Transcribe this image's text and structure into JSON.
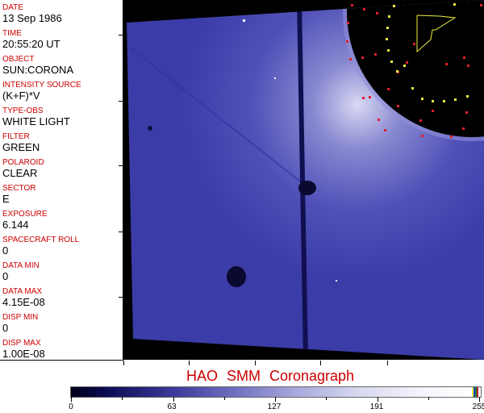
{
  "fields": [
    {
      "label": "DATE",
      "value": "13 Sep 1986"
    },
    {
      "label": "TIME",
      "value": "20:55:20 UT"
    },
    {
      "label": "OBJECT",
      "value": "SUN:CORONA"
    },
    {
      "label": "INTENSITY SOURCE",
      "value": "(K+F)*V"
    },
    {
      "label": "TYPE-OBS",
      "value": "WHITE LIGHT"
    },
    {
      "label": "FILTER",
      "value": "GREEN"
    },
    {
      "label": "POLAROID",
      "value": "CLEAR"
    },
    {
      "label": "SECTOR",
      "value": "E"
    },
    {
      "label": "EXPOSURE",
      "value": "6.144"
    },
    {
      "label": "SPACECRAFT ROLL",
      "value": "0"
    },
    {
      "label": "DATA MIN",
      "value": "0"
    },
    {
      "label": "DATA MAX",
      "value": "4.15E-08"
    },
    {
      "label": "DISP MIN",
      "value": "0"
    },
    {
      "label": "DISP MAX",
      "value": "1.00E-08"
    }
  ],
  "title": "HAO SMM Coronagraph",
  "colorbar": {
    "labels": [
      "0",
      "63",
      "127",
      "191",
      "255"
    ],
    "min": 0,
    "max": 255
  },
  "colors": {
    "label": "#cc0000",
    "image_blue": "#4a4ab8",
    "background": "#000000",
    "marker_red": "#e0202a",
    "marker_yellow": "#f0f040"
  }
}
